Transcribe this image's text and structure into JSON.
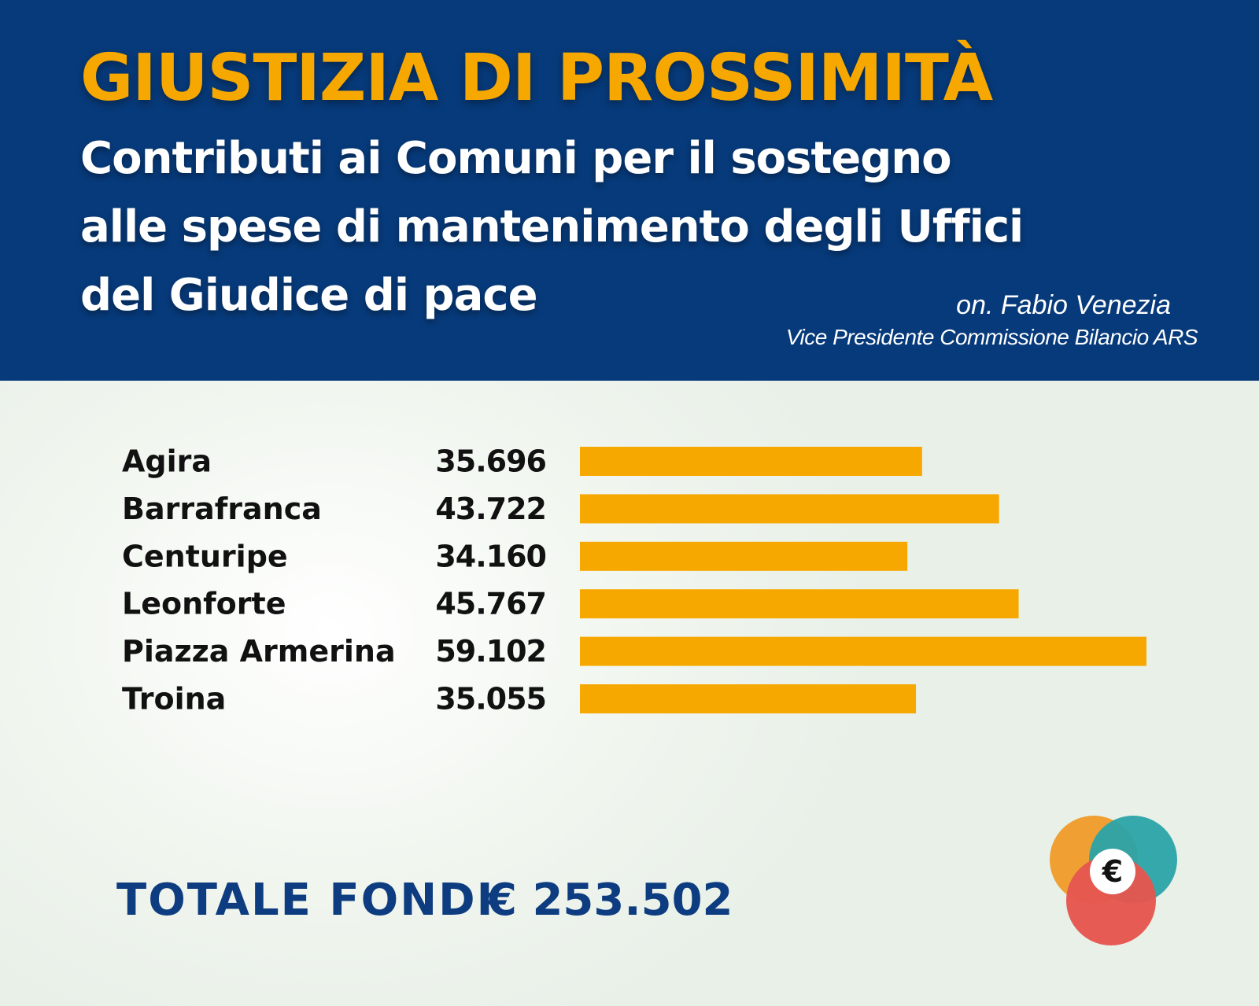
{
  "header": {
    "title": "GIUSTIZIA DI PROSSIMITÀ",
    "subtitle_lines": [
      "Contributi ai Comuni per il sostegno",
      "alle spese di mantenimento degli Uffici",
      "del Giudice di pace"
    ],
    "author": "on. Fabio Venezia",
    "role": "Vice Presidente Commissione Bilancio ARS"
  },
  "colors": {
    "header_bg": "#073a7a",
    "title": "#f7a800",
    "bar": "#f7a800",
    "total_text": "#0d3d80"
  },
  "chart_data": {
    "type": "bar",
    "orientation": "horizontal",
    "categories": [
      "Agira",
      "Barrafranca",
      "Centuripe",
      "Leonforte",
      "Piazza Armerina",
      "Troina"
    ],
    "values": [
      35696,
      43722,
      34160,
      45767,
      59102,
      35055
    ],
    "value_labels": [
      "35.696",
      "43.722",
      "34.160",
      "45.767",
      "59.102",
      "35.055"
    ],
    "xlim": [
      0,
      59102
    ],
    "grid": false,
    "legend": "none"
  },
  "total": {
    "label": "TOTALE FONDI",
    "value": "€ 253.502"
  },
  "logo": {
    "icon": "euro-coins-icon",
    "symbol": "€",
    "colors": [
      "#f0a033",
      "#2aa3a8",
      "#e5574f"
    ]
  }
}
